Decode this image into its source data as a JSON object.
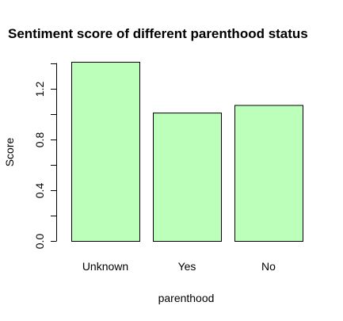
{
  "chart_data": {
    "type": "bar",
    "title": "Sentiment score of different parenthood status",
    "xlabel": "parenthood",
    "ylabel": "Score",
    "categories": [
      "Unknown",
      "Yes",
      "No"
    ],
    "values": [
      1.41,
      1.01,
      1.07
    ],
    "ylim": [
      0,
      1.41
    ],
    "yticks": [
      0.0,
      0.2,
      0.4,
      0.6,
      0.8,
      1.0,
      1.2,
      1.4
    ],
    "ytick_labels": [
      "0.0",
      "",
      "0.4",
      "",
      "0.8",
      "",
      "1.2",
      ""
    ],
    "bar_color": "#bbffbb",
    "grid": false,
    "legend": "none"
  }
}
